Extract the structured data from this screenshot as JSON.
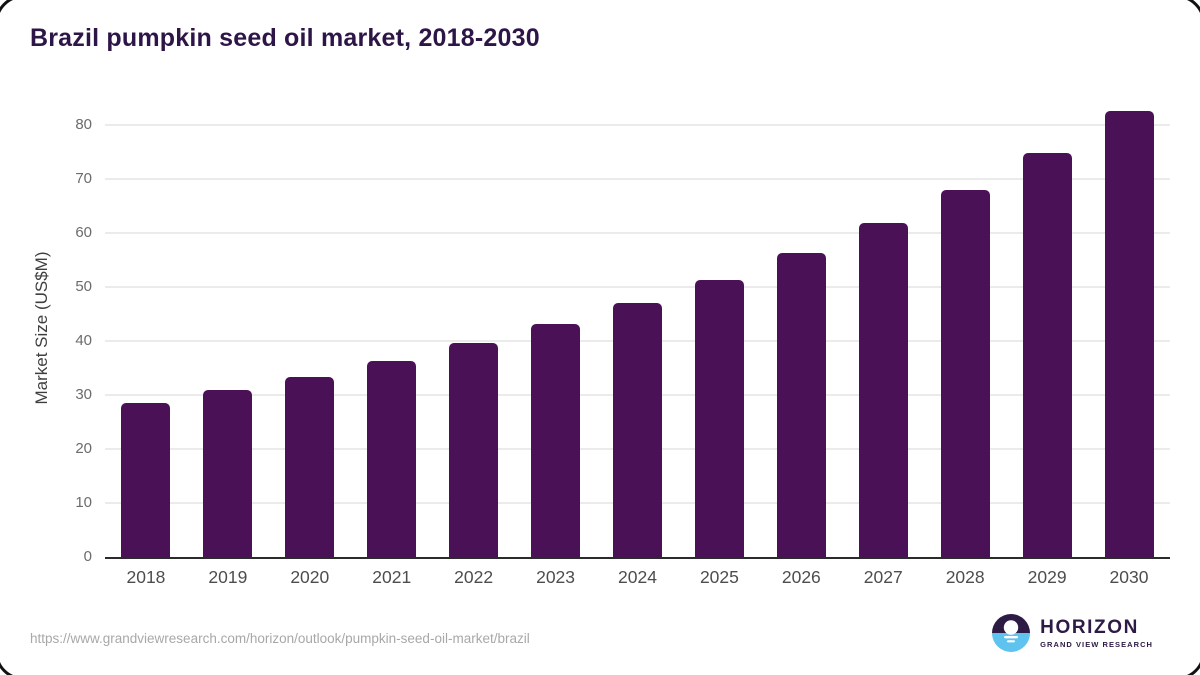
{
  "title": "Brazil pumpkin seed oil market, 2018-2030",
  "source_url": "https://www.grandviewresearch.com/horizon/outlook/pumpkin-seed-oil-market/brazil",
  "logo": {
    "name": "HORIZON",
    "subtitle": "GRAND VIEW RESEARCH"
  },
  "colors": {
    "bar": "#4a1157",
    "title": "#2e1547",
    "gridline": "#ebebeb",
    "axis_line": "#2b2b2b",
    "y_tick_text": "#6b6b6b",
    "x_tick_text": "#4d4d4d",
    "url_text": "#a8a8a8",
    "logo_purple": "#2d1a45",
    "logo_blue": "#5ec3ef"
  },
  "chart_data": {
    "type": "bar",
    "title": "Brazil pumpkin seed oil market, 2018-2030",
    "xlabel": "",
    "ylabel": "Market Size (US$M)",
    "categories": [
      "2018",
      "2019",
      "2020",
      "2021",
      "2022",
      "2023",
      "2024",
      "2025",
      "2026",
      "2027",
      "2028",
      "2029",
      "2030"
    ],
    "values": [
      28.6,
      30.9,
      33.4,
      36.3,
      39.6,
      43.1,
      47.0,
      51.3,
      56.3,
      61.8,
      68.0,
      74.8,
      82.5
    ],
    "ylim": [
      0,
      84.6
    ],
    "yticks": [
      0,
      10,
      20,
      30,
      40,
      50,
      60,
      70,
      80
    ],
    "grid": true,
    "legend": false,
    "bar_color": "#4a1157"
  }
}
